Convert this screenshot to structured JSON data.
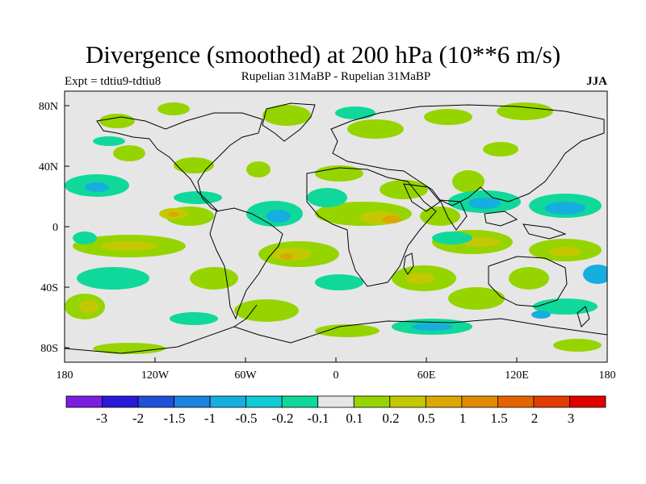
{
  "title": "Divergence (smoothed) at 200 hPa (10**6 m/s)",
  "subtitle_left": "Expt = tdtiu9-tdtiu8",
  "subtitle_center": "Rupelian  31MaBP - Rupelian  31MaBP",
  "subtitle_right": "JJA",
  "map": {
    "projection": "cylindrical",
    "lon_range": [
      -180,
      180
    ],
    "lat_range": [
      -90,
      90
    ],
    "background": "#e6e6e6",
    "x_ticks": [
      "180",
      "120W",
      "60W",
      "0",
      "60E",
      "120E",
      "180"
    ],
    "y_ticks": [
      "80N",
      "40N",
      "0",
      "40S",
      "80S"
    ]
  },
  "colorbar": {
    "labels": [
      "-3",
      "-2",
      "-1.5",
      "-1",
      "-0.5",
      "-0.2",
      "-0.1",
      "0.1",
      "0.2",
      "0.5",
      "1",
      "1.5",
      "2",
      "3"
    ],
    "colors": [
      "#7a1fe0",
      "#2a19d8",
      "#1f4fd8",
      "#1a82e0",
      "#16aede",
      "#10ccd6",
      "#10d89a",
      "#e6e6e6",
      "#96d400",
      "#c4c800",
      "#daa800",
      "#e08a00",
      "#e26400",
      "#e23c00",
      "#e00000"
    ]
  }
}
